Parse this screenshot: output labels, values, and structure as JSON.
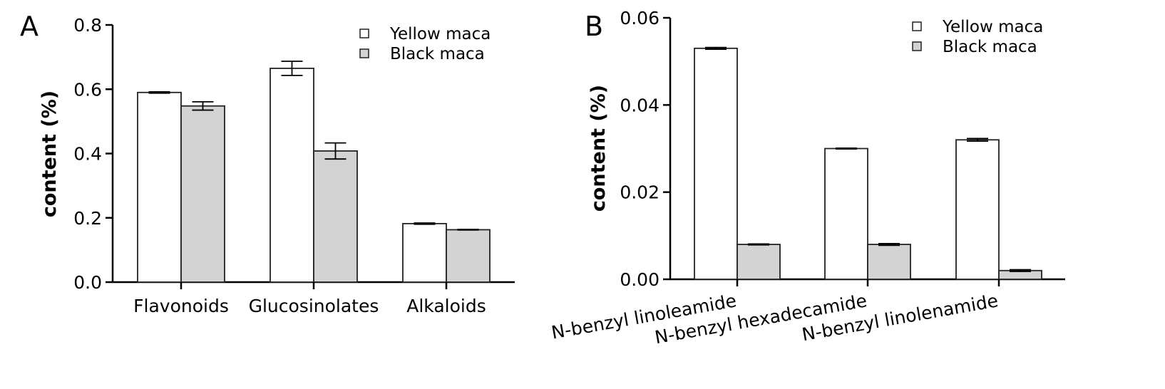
{
  "panels": [
    {
      "label": "A"
    },
    {
      "label": "B"
    }
  ],
  "chart_data": [
    {
      "type": "bar",
      "panel": "A",
      "ylabel": "content (%)",
      "ylim": [
        0,
        0.8
      ],
      "yticks": [
        "0.0",
        "0.2",
        "0.4",
        "0.6",
        "0.8"
      ],
      "ytick_values": [
        0,
        0.2,
        0.4,
        0.6,
        0.8
      ],
      "categories": [
        "Flavonoids",
        "Glucosinolates",
        "Alkaloids"
      ],
      "series": [
        {
          "name": "Yellow maca",
          "values": [
            0.59,
            0.665,
            0.182
          ],
          "errors": [
            0.002,
            0.022,
            0.002
          ],
          "color": "#ffffff"
        },
        {
          "name": "Black maca",
          "values": [
            0.548,
            0.408,
            0.163
          ],
          "errors": [
            0.013,
            0.025,
            0.001
          ],
          "color": "#d3d3d3"
        }
      ],
      "legend_position": "top-right",
      "grid": false
    },
    {
      "type": "bar",
      "panel": "B",
      "ylabel": "content (%)",
      "ylim": [
        0,
        0.06
      ],
      "yticks": [
        "0.00",
        "0.02",
        "0.04",
        "0.06"
      ],
      "ytick_values": [
        0,
        0.02,
        0.04,
        0.06
      ],
      "categories": [
        "N-benzyl linoleamide",
        "N-benzyl hexadecamide",
        "N-benzyl linolenamide"
      ],
      "series": [
        {
          "name": "Yellow maca",
          "values": [
            0.053,
            0.03,
            0.032
          ],
          "errors": [
            0.0002,
            0.0001,
            0.0003
          ],
          "color": "#ffffff"
        },
        {
          "name": "Black maca",
          "values": [
            0.008,
            0.008,
            0.002
          ],
          "errors": [
            0.0001,
            0.0002,
            0.0002
          ],
          "color": "#d3d3d3"
        }
      ],
      "legend_position": "top-right",
      "grid": false
    }
  ]
}
